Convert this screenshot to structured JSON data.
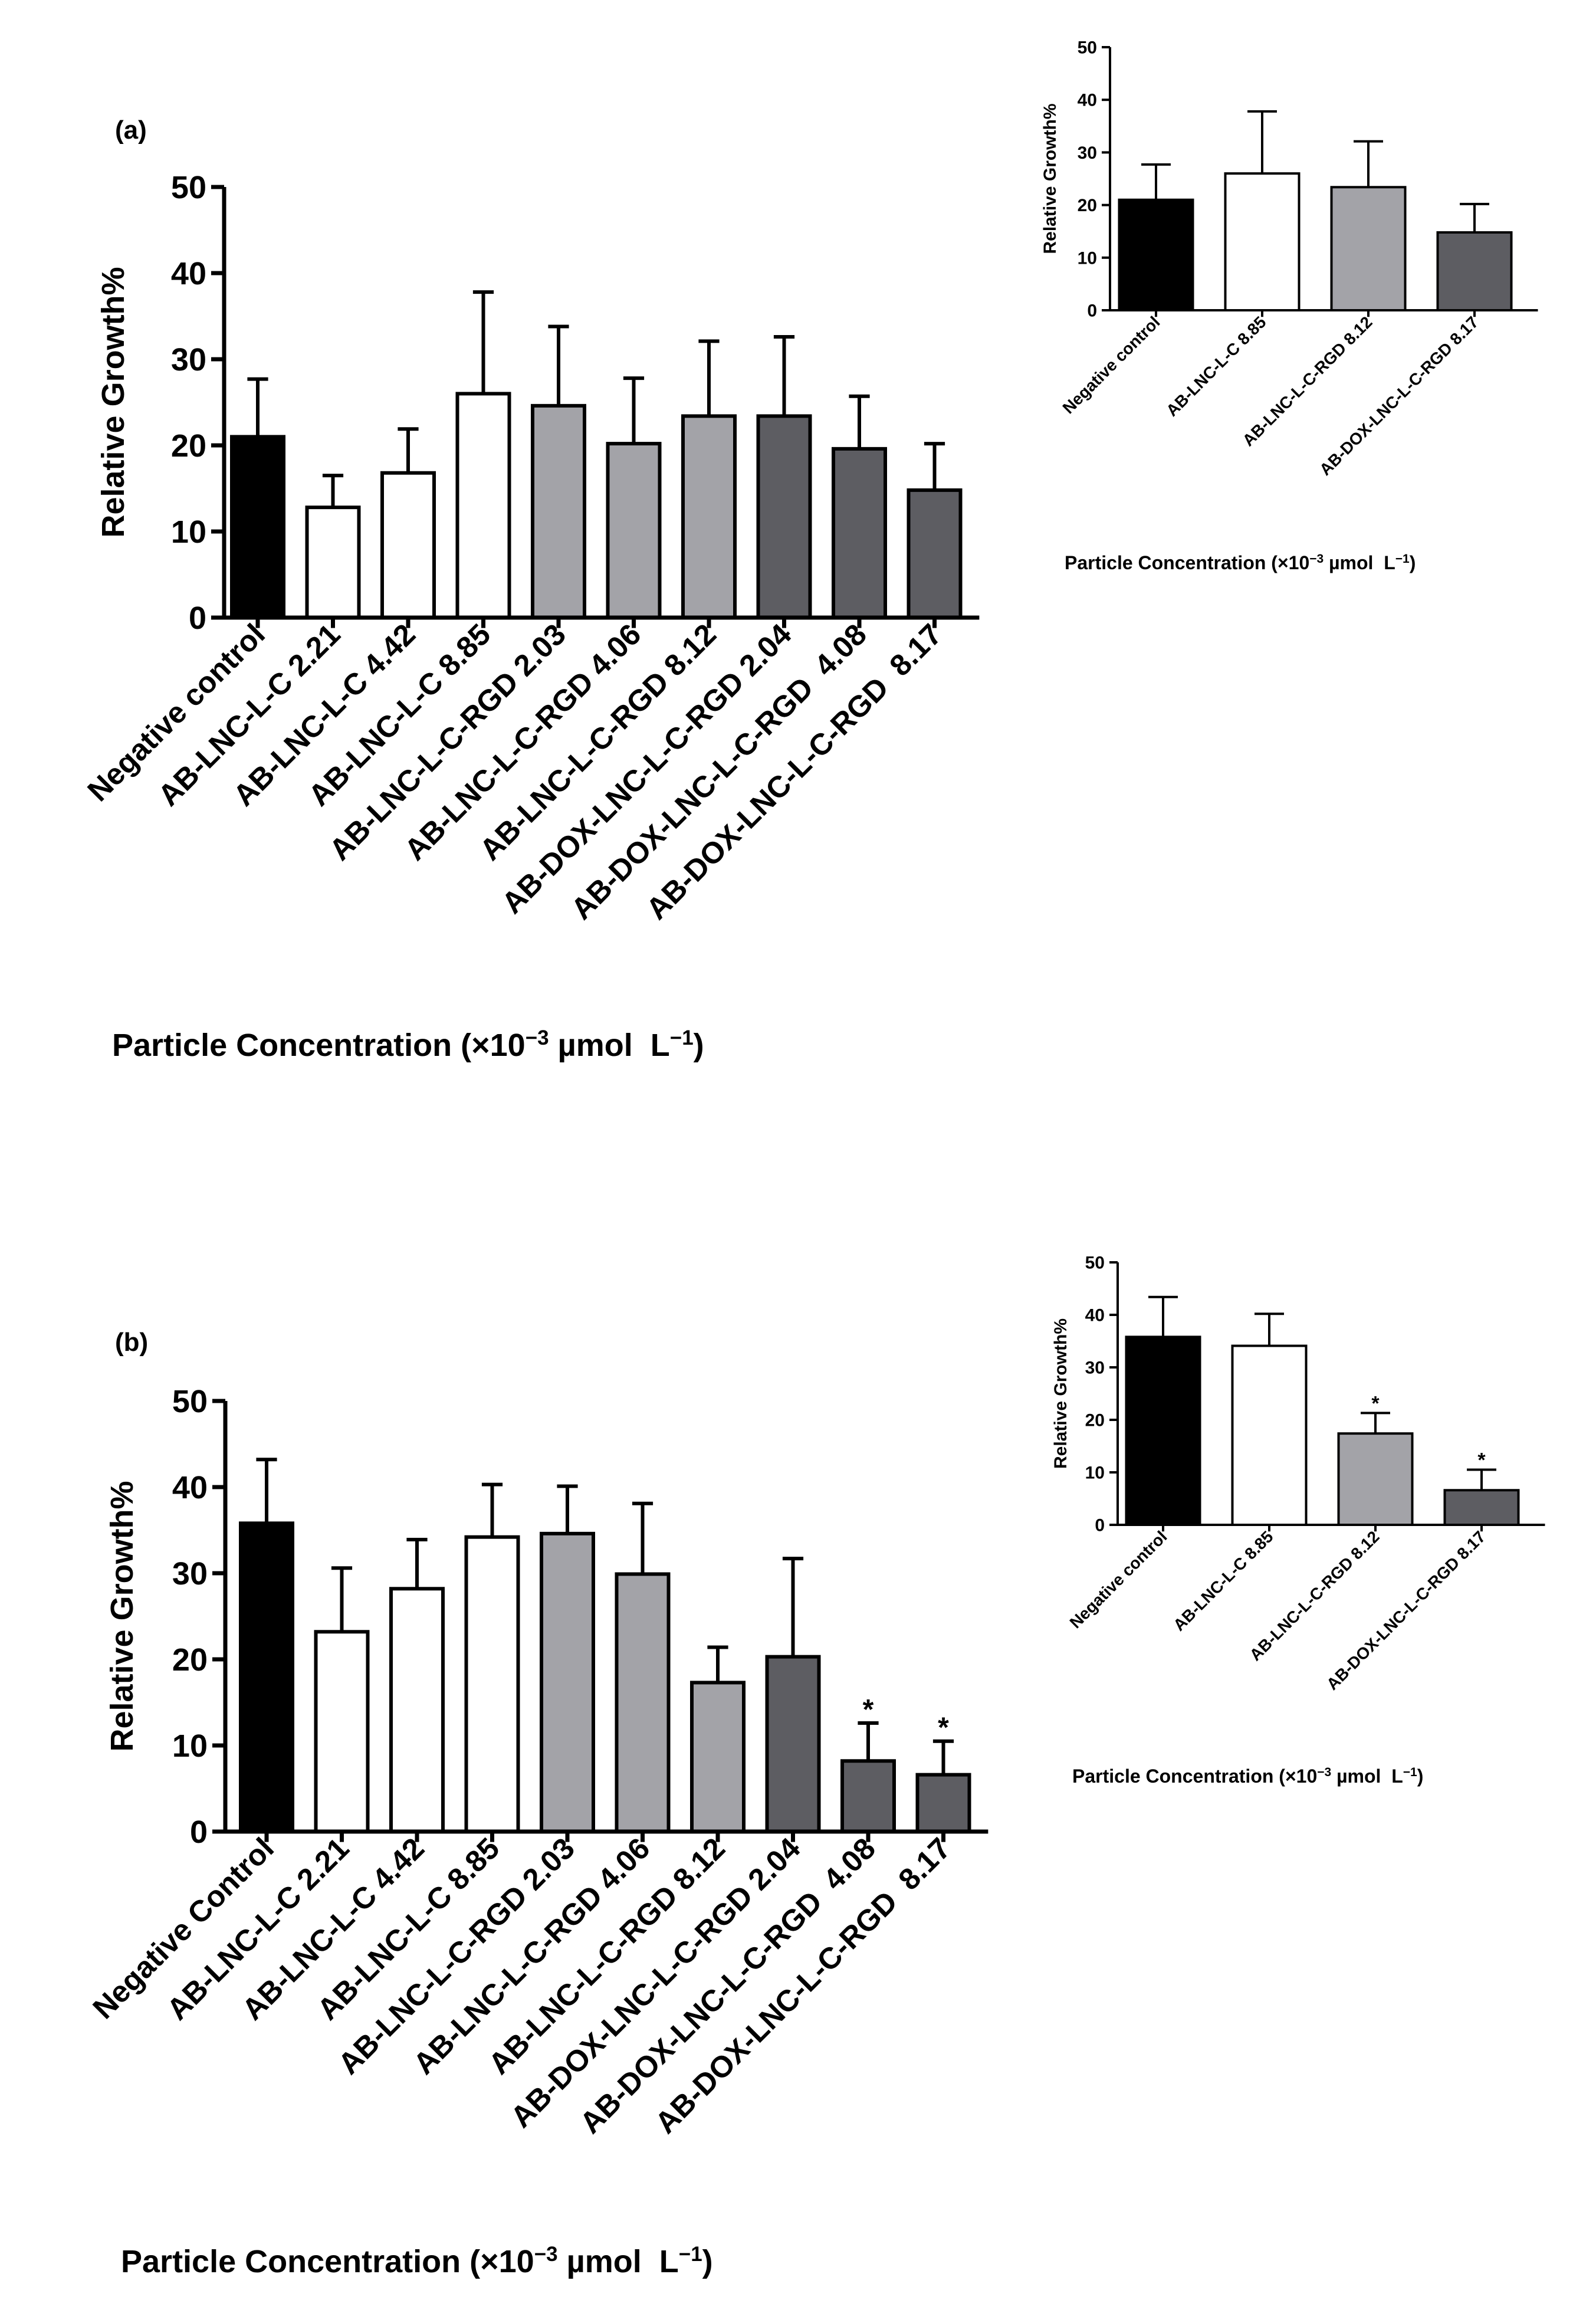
{
  "panels": [
    {
      "panel_label": "(a)",
      "main": {
        "type": "bar",
        "ylabel": "Relative Growth%",
        "xlabel_pre": "Particle Concentration (×10",
        "xlabel_exp1": "−3",
        "xlabel_mid": " µmol  L",
        "xlabel_exp2": "−1",
        "xlabel_post": ")",
        "ylim": [
          0,
          50
        ],
        "yticks": [
          0,
          10,
          20,
          30,
          40,
          50
        ],
        "categories": [
          "Negative control",
          "AB-LNC-L-C 2.21",
          "AB-LNC-L-C 4.42",
          "AB-LNC-L-C 8.85",
          "AB-LNC-L-C-RGD 2.03",
          "AB-LNC-L-C-RGD 4.06",
          "AB-LNC-L-C-RGD 8.12",
          "AB-DOX-LNC-L-C-RGD 2.04",
          "AB-DOX-LNC-L-C-RGD  4.08",
          "AB-DOX-LNC-L-C-RGD  8.17"
        ],
        "values": [
          21,
          12.8,
          16.8,
          26,
          24.6,
          20.2,
          23.4,
          23.4,
          19.6,
          14.8
        ],
        "errors": [
          6.7,
          3.7,
          5.1,
          11.8,
          9.2,
          7.6,
          8.7,
          9.2,
          6.1,
          5.4
        ],
        "colors": [
          "#000000",
          "#ffffff",
          "#ffffff",
          "#ffffff",
          "#a3a3a8",
          "#a3a3a8",
          "#a3a3a8",
          "#5d5d62",
          "#5d5d62",
          "#5d5d62"
        ],
        "significance": [
          "",
          "",
          "",
          "",
          "",
          "",
          "",
          "",
          "",
          ""
        ]
      },
      "inset": {
        "type": "bar",
        "ylabel": "Relative Growth%",
        "xlabel_pre": "Particle Concentration (×10",
        "xlabel_exp1": "−3",
        "xlabel_mid": " µmol  L",
        "xlabel_exp2": "−1",
        "xlabel_post": ")",
        "ylim": [
          0,
          50
        ],
        "yticks": [
          0,
          10,
          20,
          30,
          40,
          50
        ],
        "categories": [
          "Negative control",
          "AB-LNC-L-C 8.85",
          "AB-LNC-L-C-RGD 8.12",
          "AB-DOX-LNC-L-C-RGD 8.17"
        ],
        "values": [
          21,
          26,
          23.4,
          14.8
        ],
        "errors": [
          6.7,
          11.8,
          8.7,
          5.4
        ],
        "colors": [
          "#000000",
          "#ffffff",
          "#a3a3a8",
          "#5d5d62"
        ],
        "significance": [
          "",
          "",
          "",
          ""
        ]
      }
    },
    {
      "panel_label": "(b)",
      "main": {
        "type": "bar",
        "ylabel": "Relative Growth%",
        "xlabel_pre": "Particle Concentration (×10",
        "xlabel_exp1": "−3",
        "xlabel_mid": " µmol  L",
        "xlabel_exp2": "−1",
        "xlabel_post": ")",
        "ylim": [
          0,
          50
        ],
        "yticks": [
          0,
          10,
          20,
          30,
          40,
          50
        ],
        "categories": [
          "Negative Control",
          "AB-LNC-L-C 2.21",
          "AB-LNC-L-C 4.42",
          "AB-LNC-L-C 8.85",
          "AB-LNC-L-C-RGD 2.03",
          "AB-LNC-L-C-RGD 4.06",
          "AB-LNC-L-C-RGD 8.12",
          "AB-DOX-LNC-L-C-RGD 2.04",
          "AB-DOX-LNC-L-C-RGD  4.08",
          "AB-DOX-LNC-L-C-RGD  8.17"
        ],
        "values": [
          35.8,
          23.2,
          28.2,
          34.2,
          34.6,
          29.9,
          17.3,
          20.3,
          8.2,
          6.6
        ],
        "errors": [
          7.4,
          7.4,
          5.7,
          6.1,
          5.5,
          8.2,
          4.1,
          11.4,
          4.4,
          3.9
        ],
        "colors": [
          "#000000",
          "#ffffff",
          "#ffffff",
          "#ffffff",
          "#a3a3a8",
          "#a3a3a8",
          "#a3a3a8",
          "#5d5d62",
          "#5d5d62",
          "#5d5d62"
        ],
        "significance": [
          "",
          "",
          "",
          "",
          "",
          "",
          "",
          "",
          "*",
          "*"
        ]
      },
      "inset": {
        "type": "bar",
        "ylabel": "Relative Growth%",
        "xlabel_pre": "Particle Concentration (×10",
        "xlabel_exp1": "−3",
        "xlabel_mid": " µmol  L",
        "xlabel_exp2": "−1",
        "xlabel_post": ")",
        "ylim": [
          0,
          50
        ],
        "yticks": [
          0,
          10,
          20,
          30,
          40,
          50
        ],
        "categories": [
          "Negative control",
          "AB-LNC-L-C 8.85",
          "AB-LNC-L-C-RGD 8.12",
          "AB-DOX-LNC-L-C-RGD 8.17"
        ],
        "values": [
          35.8,
          34.1,
          17.4,
          6.6
        ],
        "errors": [
          7.6,
          6.1,
          3.9,
          3.9
        ],
        "colors": [
          "#000000",
          "#ffffff",
          "#a3a3a8",
          "#5d5d62"
        ],
        "significance": [
          "",
          "",
          "*",
          "*"
        ]
      }
    }
  ],
  "chart_data": [
    {
      "type": "bar",
      "title": "(a)",
      "xlabel": "Particle Concentration (×10−3 µmol  L−1)",
      "ylabel": "Relative Growth%",
      "ylim": [
        0,
        50
      ],
      "categories": [
        "Negative control",
        "AB-LNC-L-C 2.21",
        "AB-LNC-L-C 4.42",
        "AB-LNC-L-C 8.85",
        "AB-LNC-L-C-RGD 2.03",
        "AB-LNC-L-C-RGD 4.06",
        "AB-LNC-L-C-RGD 8.12",
        "AB-DOX-LNC-L-C-RGD 2.04",
        "AB-DOX-LNC-L-C-RGD  4.08",
        "AB-DOX-LNC-L-C-RGD  8.17"
      ],
      "values": [
        21,
        12.8,
        16.8,
        26,
        24.6,
        20.2,
        23.4,
        23.4,
        19.6,
        14.8
      ],
      "errors": [
        6.7,
        3.7,
        5.1,
        11.8,
        9.2,
        7.6,
        8.7,
        9.2,
        6.1,
        5.4
      ]
    },
    {
      "type": "bar",
      "title": "(a) inset",
      "xlabel": "Particle Concentration (×10−3 µmol  L−1)",
      "ylabel": "Relative Growth%",
      "ylim": [
        0,
        50
      ],
      "categories": [
        "Negative control",
        "AB-LNC-L-C 8.85",
        "AB-LNC-L-C-RGD 8.12",
        "AB-DOX-LNC-L-C-RGD 8.17"
      ],
      "values": [
        21,
        26,
        23.4,
        14.8
      ],
      "errors": [
        6.7,
        11.8,
        8.7,
        5.4
      ]
    },
    {
      "type": "bar",
      "title": "(b)",
      "xlabel": "Particle Concentration (×10−3 µmol  L−1)",
      "ylabel": "Relative Growth%",
      "ylim": [
        0,
        50
      ],
      "categories": [
        "Negative Control",
        "AB-LNC-L-C 2.21",
        "AB-LNC-L-C 4.42",
        "AB-LNC-L-C 8.85",
        "AB-LNC-L-C-RGD 2.03",
        "AB-LNC-L-C-RGD 4.06",
        "AB-LNC-L-C-RGD 8.12",
        "AB-DOX-LNC-L-C-RGD 2.04",
        "AB-DOX-LNC-L-C-RGD  4.08",
        "AB-DOX-LNC-L-C-RGD  8.17"
      ],
      "values": [
        35.8,
        23.2,
        28.2,
        34.2,
        34.6,
        29.9,
        17.3,
        20.3,
        8.2,
        6.6
      ],
      "errors": [
        7.4,
        7.4,
        5.7,
        6.1,
        5.5,
        8.2,
        4.1,
        11.4,
        4.4,
        3.9
      ],
      "annotations": [
        "*",
        "*"
      ]
    },
    {
      "type": "bar",
      "title": "(b) inset",
      "xlabel": "Particle Concentration (×10−3 µmol  L−1)",
      "ylabel": "Relative Growth%",
      "ylim": [
        0,
        50
      ],
      "categories": [
        "Negative control",
        "AB-LNC-L-C 8.85",
        "AB-LNC-L-C-RGD 8.12",
        "AB-DOX-LNC-L-C-RGD 8.17"
      ],
      "values": [
        35.8,
        34.1,
        17.4,
        6.6
      ],
      "errors": [
        7.6,
        6.1,
        3.9,
        3.9
      ],
      "annotations": [
        "*",
        "*"
      ]
    }
  ]
}
